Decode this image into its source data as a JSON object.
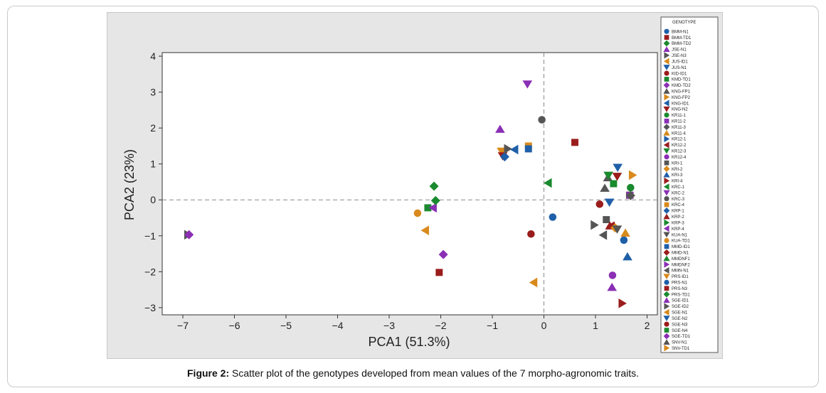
{
  "caption": {
    "label": "Figure 2:",
    "text": " Scatter plot of the genotypes developed from mean values of the 7 morpho-agronomic traits."
  },
  "chart_data": {
    "type": "scatter",
    "xlabel": "PCA1 (51.3%)",
    "ylabel": "PCA2 (23%)",
    "xlim": [
      -7.4,
      2.2
    ],
    "ylim": [
      -3.2,
      4.1
    ],
    "xticks": [
      "-7",
      "-6",
      "-5",
      "-4",
      "-3",
      "-2",
      "-1",
      "0",
      "1",
      "2"
    ],
    "yticks": [
      "4",
      "3",
      "2",
      "1",
      "0",
      "-1",
      "-2",
      "-3"
    ],
    "reference_lines": {
      "x": 0,
      "y": 0,
      "style": "dashed"
    },
    "grid": false,
    "legend": {
      "title": "GENOTYPE",
      "placement": "right",
      "entries": [
        {
          "name": "BMM-N1",
          "marker": "circle",
          "color": "#1f5fa8"
        },
        {
          "name": "BMM-TD1",
          "marker": "square",
          "color": "#9b1c1c"
        },
        {
          "name": "BMM-TD2",
          "marker": "diamond",
          "color": "#1a8a2e"
        },
        {
          "name": "JSE-N1",
          "marker": "triangle-up",
          "color": "#8b2fb5"
        },
        {
          "name": "JSE-N3",
          "marker": "triangle-right",
          "color": "#555555"
        },
        {
          "name": "JUS-ID1",
          "marker": "triangle-left",
          "color": "#d98a1c"
        },
        {
          "name": "JUS-N1",
          "marker": "triangle-down",
          "color": "#1f5fa8"
        },
        {
          "name": "KID-ID1",
          "marker": "circle",
          "color": "#9b1c1c"
        },
        {
          "name": "KMD-TD1",
          "marker": "square",
          "color": "#1a8a2e"
        },
        {
          "name": "KMD-TD2",
          "marker": "diamond",
          "color": "#8b2fb5"
        },
        {
          "name": "KNG-FP1",
          "marker": "triangle-up",
          "color": "#555555"
        },
        {
          "name": "KNG-FP2",
          "marker": "triangle-right",
          "color": "#d98a1c"
        },
        {
          "name": "KNG-ID1",
          "marker": "triangle-left",
          "color": "#1f5fa8"
        },
        {
          "name": "KNG-N2",
          "marker": "triangle-down",
          "color": "#9b1c1c"
        },
        {
          "name": "KR11-1",
          "marker": "circle",
          "color": "#1a8a2e"
        },
        {
          "name": "KR11-2",
          "marker": "square",
          "color": "#8b2fb5"
        },
        {
          "name": "KR11-3",
          "marker": "diamond",
          "color": "#555555"
        },
        {
          "name": "KR11-4",
          "marker": "triangle-up",
          "color": "#d98a1c"
        },
        {
          "name": "KR12-1",
          "marker": "triangle-right",
          "color": "#1f5fa8"
        },
        {
          "name": "KR12-2",
          "marker": "triangle-left",
          "color": "#9b1c1c"
        },
        {
          "name": "KR12-3",
          "marker": "triangle-down",
          "color": "#1a8a2e"
        },
        {
          "name": "KR12-4",
          "marker": "circle",
          "color": "#8b2fb5"
        },
        {
          "name": "KRI-1",
          "marker": "square",
          "color": "#555555"
        },
        {
          "name": "KRI-2",
          "marker": "diamond",
          "color": "#d98a1c"
        },
        {
          "name": "KRI-3",
          "marker": "triangle-up",
          "color": "#1f5fa8"
        },
        {
          "name": "KRI-4",
          "marker": "triangle-right",
          "color": "#9b1c1c"
        },
        {
          "name": "KRC-1",
          "marker": "triangle-left",
          "color": "#1a8a2e"
        },
        {
          "name": "KRC-2",
          "marker": "triangle-down",
          "color": "#8b2fb5"
        },
        {
          "name": "KRC-3",
          "marker": "circle",
          "color": "#555555"
        },
        {
          "name": "KRC-4",
          "marker": "square",
          "color": "#d98a1c"
        },
        {
          "name": "KRP-1",
          "marker": "diamond",
          "color": "#1f5fa8"
        },
        {
          "name": "KRP-2",
          "marker": "triangle-up",
          "color": "#9b1c1c"
        },
        {
          "name": "KRP-3",
          "marker": "triangle-right",
          "color": "#1a8a2e"
        },
        {
          "name": "KRP-4",
          "marker": "triangle-left",
          "color": "#8b2fb5"
        },
        {
          "name": "KUA-N1",
          "marker": "triangle-down",
          "color": "#555555"
        },
        {
          "name": "KUA-TD1",
          "marker": "circle",
          "color": "#d98a1c"
        },
        {
          "name": "MMD-ID1",
          "marker": "square",
          "color": "#1f5fa8"
        },
        {
          "name": "MMD-N1",
          "marker": "diamond",
          "color": "#9b1c1c"
        },
        {
          "name": "MMDNF1",
          "marker": "triangle-up",
          "color": "#1a8a2e"
        },
        {
          "name": "MMDNF2",
          "marker": "triangle-right",
          "color": "#8b2fb5"
        },
        {
          "name": "MMN-N1",
          "marker": "triangle-left",
          "color": "#555555"
        },
        {
          "name": "PRS-ID1",
          "marker": "triangle-down",
          "color": "#d98a1c"
        },
        {
          "name": "PRS-N1",
          "marker": "circle",
          "color": "#1f5fa8"
        },
        {
          "name": "PRS-N3",
          "marker": "square",
          "color": "#9b1c1c"
        },
        {
          "name": "PRS-TD1",
          "marker": "diamond",
          "color": "#1a8a2e"
        },
        {
          "name": "SGE-ID1",
          "marker": "triangle-up",
          "color": "#8b2fb5"
        },
        {
          "name": "SGE-ID2",
          "marker": "triangle-right",
          "color": "#555555"
        },
        {
          "name": "SGE-N1",
          "marker": "triangle-left",
          "color": "#d98a1c"
        },
        {
          "name": "SGE-N2",
          "marker": "triangle-down",
          "color": "#1f5fa8"
        },
        {
          "name": "SGE-N3",
          "marker": "circle",
          "color": "#9b1c1c"
        },
        {
          "name": "SGE-N4",
          "marker": "square",
          "color": "#1a8a2e"
        },
        {
          "name": "SGE-TD1",
          "marker": "diamond",
          "color": "#8b2fb5"
        },
        {
          "name": "SNV-N1",
          "marker": "triangle-up",
          "color": "#555555"
        },
        {
          "name": "SNV-TD1",
          "marker": "triangle-right",
          "color": "#d98a1c"
        }
      ]
    },
    "points": [
      {
        "x": -6.9,
        "y": -0.97,
        "marker": "triangle-right",
        "color": "#555555"
      },
      {
        "x": -6.88,
        "y": -0.97,
        "marker": "diamond",
        "color": "#8b2fb5"
      },
      {
        "x": -2.45,
        "y": -0.37,
        "marker": "circle",
        "color": "#d98a1c"
      },
      {
        "x": -2.25,
        "y": -0.22,
        "marker": "square",
        "color": "#1a8a2e"
      },
      {
        "x": -2.15,
        "y": -0.22,
        "marker": "triangle-left",
        "color": "#8b2fb5"
      },
      {
        "x": -2.1,
        "y": -0.02,
        "marker": "diamond",
        "color": "#1a8a2e"
      },
      {
        "x": -2.13,
        "y": 0.38,
        "marker": "diamond",
        "color": "#1a8a2e"
      },
      {
        "x": -2.3,
        "y": -0.85,
        "marker": "triangle-left",
        "color": "#d98a1c"
      },
      {
        "x": -1.95,
        "y": -1.52,
        "marker": "diamond",
        "color": "#8b2fb5"
      },
      {
        "x": -2.03,
        "y": -2.02,
        "marker": "square",
        "color": "#9b1c1c"
      },
      {
        "x": -0.85,
        "y": 1.97,
        "marker": "triangle-up",
        "color": "#8b2fb5"
      },
      {
        "x": -0.82,
        "y": 1.35,
        "marker": "triangle-down",
        "color": "#d98a1c"
      },
      {
        "x": -0.8,
        "y": 1.22,
        "marker": "triangle-down",
        "color": "#9b1c1c"
      },
      {
        "x": -0.76,
        "y": 1.2,
        "marker": "diamond",
        "color": "#1f5fa8"
      },
      {
        "x": -0.7,
        "y": 1.42,
        "marker": "triangle-right",
        "color": "#555555"
      },
      {
        "x": -0.57,
        "y": 1.4,
        "marker": "triangle-left",
        "color": "#1f5fa8"
      },
      {
        "x": -0.3,
        "y": 1.5,
        "marker": "square",
        "color": "#d98a1c"
      },
      {
        "x": -0.3,
        "y": 1.42,
        "marker": "square",
        "color": "#1f5fa8"
      },
      {
        "x": -0.32,
        "y": 3.22,
        "marker": "triangle-down",
        "color": "#8b2fb5"
      },
      {
        "x": -0.25,
        "y": -0.95,
        "marker": "circle",
        "color": "#9b1c1c"
      },
      {
        "x": -0.2,
        "y": -2.3,
        "marker": "triangle-left",
        "color": "#d98a1c"
      },
      {
        "x": -0.04,
        "y": 2.23,
        "marker": "circle",
        "color": "#555555"
      },
      {
        "x": 0.08,
        "y": 0.47,
        "marker": "triangle-left",
        "color": "#1a8a2e"
      },
      {
        "x": 0.17,
        "y": -0.48,
        "marker": "circle",
        "color": "#1f5fa8"
      },
      {
        "x": 0.6,
        "y": 1.6,
        "marker": "square",
        "color": "#9b1c1c"
      },
      {
        "x": 0.98,
        "y": -0.7,
        "marker": "triangle-right",
        "color": "#555555"
      },
      {
        "x": 1.08,
        "y": -0.12,
        "marker": "circle",
        "color": "#9b1c1c"
      },
      {
        "x": 1.15,
        "y": -0.98,
        "marker": "triangle-left",
        "color": "#555555"
      },
      {
        "x": 1.18,
        "y": 0.33,
        "marker": "triangle-up",
        "color": "#555555"
      },
      {
        "x": 1.21,
        "y": -0.55,
        "marker": "square",
        "color": "#555555"
      },
      {
        "x": 1.24,
        "y": 0.62,
        "marker": "triangle-up",
        "color": "#555555"
      },
      {
        "x": 1.25,
        "y": 0.68,
        "marker": "triangle-down",
        "color": "#1a8a2e"
      },
      {
        "x": 1.27,
        "y": -0.07,
        "marker": "triangle-down",
        "color": "#1f5fa8"
      },
      {
        "x": 1.28,
        "y": -0.72,
        "marker": "triangle-up",
        "color": "#9b1c1c"
      },
      {
        "x": 1.3,
        "y": -0.73,
        "marker": "triangle-left",
        "color": "#9b1c1c"
      },
      {
        "x": 1.32,
        "y": -2.43,
        "marker": "triangle-up",
        "color": "#8b2fb5"
      },
      {
        "x": 1.33,
        "y": -2.1,
        "marker": "circle",
        "color": "#8b2fb5"
      },
      {
        "x": 1.35,
        "y": 0.45,
        "marker": "square",
        "color": "#1a8a2e"
      },
      {
        "x": 1.38,
        "y": -0.78,
        "marker": "diamond",
        "color": "#d98a1c"
      },
      {
        "x": 1.42,
        "y": -0.82,
        "marker": "triangle-down",
        "color": "#555555"
      },
      {
        "x": 1.42,
        "y": 0.65,
        "marker": "triangle-down",
        "color": "#9b1c1c"
      },
      {
        "x": 1.43,
        "y": 0.9,
        "marker": "triangle-down",
        "color": "#1f5fa8"
      },
      {
        "x": 1.52,
        "y": -2.88,
        "marker": "triangle-right",
        "color": "#9b1c1c"
      },
      {
        "x": 1.55,
        "y": -1.12,
        "marker": "circle",
        "color": "#1f5fa8"
      },
      {
        "x": 1.58,
        "y": -0.92,
        "marker": "triangle-up",
        "color": "#d98a1c"
      },
      {
        "x": 1.62,
        "y": -1.58,
        "marker": "triangle-up",
        "color": "#1f5fa8"
      },
      {
        "x": 1.66,
        "y": 0.13,
        "marker": "square",
        "color": "#555555"
      },
      {
        "x": 1.67,
        "y": 0.13,
        "marker": "square",
        "color": "#8b2fb5"
      },
      {
        "x": 1.68,
        "y": 0.34,
        "marker": "circle",
        "color": "#1a8a2e"
      },
      {
        "x": 1.68,
        "y": 0.12,
        "marker": "diamond",
        "color": "#555555"
      },
      {
        "x": 1.72,
        "y": 0.69,
        "marker": "triangle-right",
        "color": "#d98a1c"
      }
    ]
  }
}
